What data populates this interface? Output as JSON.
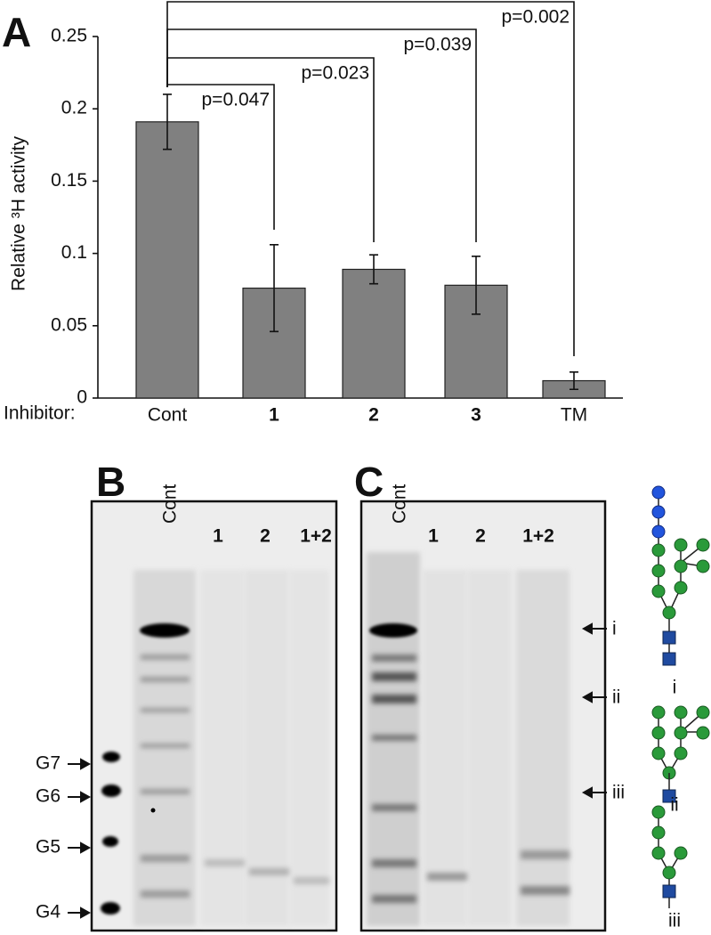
{
  "chart_data": {
    "type": "bar",
    "y_label": "Relative ³H activity",
    "x_label": "Inhibitor:",
    "categories": [
      "Cont",
      "1",
      "2",
      "3",
      "TM"
    ],
    "values": [
      0.191,
      0.076,
      0.089,
      0.078,
      0.012
    ],
    "errors": [
      0.019,
      0.03,
      0.01,
      0.02,
      0.006
    ],
    "color": "#808080",
    "ylim": [
      0,
      0.25
    ],
    "yticks": [
      0,
      0.05,
      0.1,
      0.15,
      0.2,
      0.25
    ],
    "annotations": [
      "p=0.047",
      "p=0.023",
      "p=0.039",
      "p=0.002"
    ]
  },
  "panels": [
    "A",
    "B",
    "C"
  ],
  "gel_b": {
    "lanes": [
      "Cont",
      "1",
      "2",
      "1+2"
    ],
    "markers": [
      "G7",
      "G6",
      "G5",
      "G4"
    ]
  },
  "gel_c": {
    "lanes": [
      "Cont",
      "1",
      "2",
      "1+2"
    ],
    "bands": [
      "i",
      "ii",
      "iii"
    ]
  },
  "glycans": [
    "i",
    "ii",
    "iii"
  ]
}
